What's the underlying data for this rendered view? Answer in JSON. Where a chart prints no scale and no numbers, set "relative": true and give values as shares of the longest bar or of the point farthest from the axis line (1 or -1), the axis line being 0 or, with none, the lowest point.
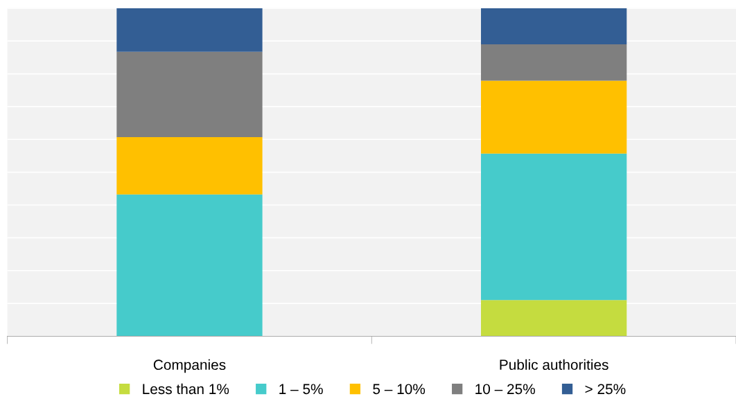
{
  "chart_data": {
    "type": "bar",
    "stacked": true,
    "relative": true,
    "categories": [
      "Companies",
      "Public authorities"
    ],
    "series": [
      {
        "name": "Less than 1%",
        "color": "#c5dc3f",
        "values": [
          0,
          0.11
        ]
      },
      {
        "name": "1 – 5%",
        "color": "#46cbcb",
        "values": [
          0.432,
          0.447
        ]
      },
      {
        "name": "5 – 10%",
        "color": "#ffc000",
        "values": [
          0.175,
          0.222
        ]
      },
      {
        "name": "10 – 25%",
        "color": "#7f7f7f",
        "values": [
          0.26,
          0.111
        ]
      },
      {
        "name": "> 25%",
        "color": "#335e94",
        "values": [
          0.133,
          0.11
        ]
      }
    ],
    "grid": "y",
    "legend": "bottom"
  }
}
